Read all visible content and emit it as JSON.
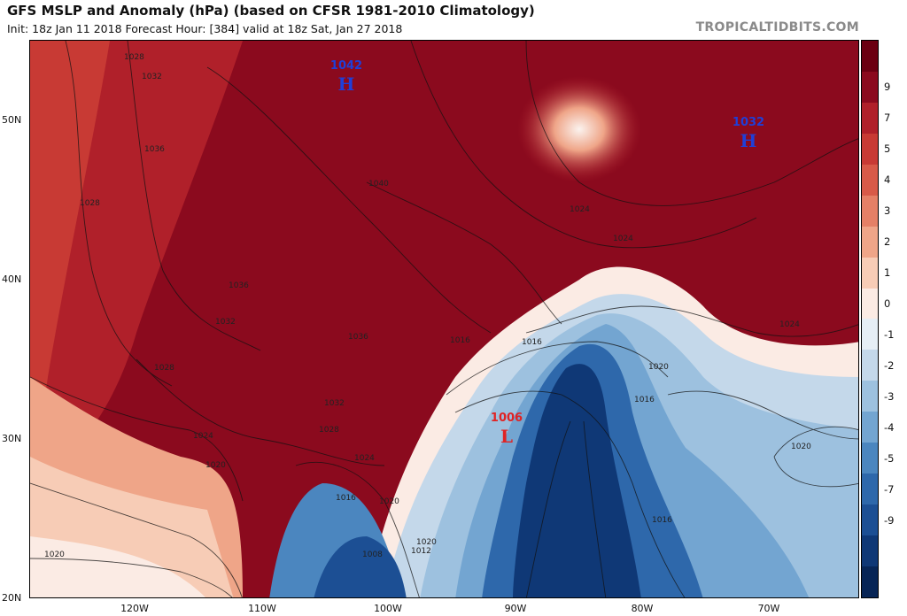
{
  "header": {
    "title": "GFS MSLP and Anomaly (hPa) (based on CFSR 1981-2010 Climatology)",
    "subtitle": "Init: 18z Jan 11 2018   Forecast Hour: [384]   valid at 18z Sat, Jan 27 2018",
    "source": "TROPICALTIDBITS.COM"
  },
  "axes": {
    "lat_labels": [
      "50N",
      "40N",
      "30N",
      "20N"
    ],
    "lon_labels": [
      "120W",
      "110W",
      "100W",
      "90W",
      "80W",
      "70W"
    ]
  },
  "colorbar": {
    "ticks": [
      "9",
      "7",
      "5",
      "4",
      "3",
      "2",
      "1",
      "0",
      "-1",
      "-2",
      "-3",
      "-4",
      "-5",
      "-7",
      "-9"
    ],
    "colors": [
      "#6b0012",
      "#8b0a1e",
      "#b0202a",
      "#c83a34",
      "#d85a48",
      "#e58066",
      "#efa588",
      "#f7ccb6",
      "#fbebe4",
      "#e6eef5",
      "#c4d8ea",
      "#9dc1df",
      "#73a5d1",
      "#4b86bf",
      "#2e68ab",
      "#1c4f94",
      "#0f3876",
      "#072556"
    ]
  },
  "pressure_centers": [
    {
      "kind": "high",
      "value": "1042",
      "symbol": "H",
      "color": "#1f3fd8"
    },
    {
      "kind": "high",
      "value": "1032",
      "symbol": "H",
      "color": "#1f3fd8"
    },
    {
      "kind": "low",
      "value": "1006",
      "symbol": "L",
      "color": "#e02323"
    }
  ],
  "isobar_labels": [
    "1028",
    "1032",
    "1036",
    "1040",
    "1028",
    "1036",
    "1032",
    "1028",
    "1032",
    "1036",
    "1024",
    "1024",
    "1024",
    "1020",
    "1024",
    "1024",
    "1028",
    "1020",
    "1016",
    "1016",
    "1020",
    "1016",
    "1020",
    "1020",
    "1016",
    "1012",
    "1008",
    "1016",
    "1020"
  ]
}
